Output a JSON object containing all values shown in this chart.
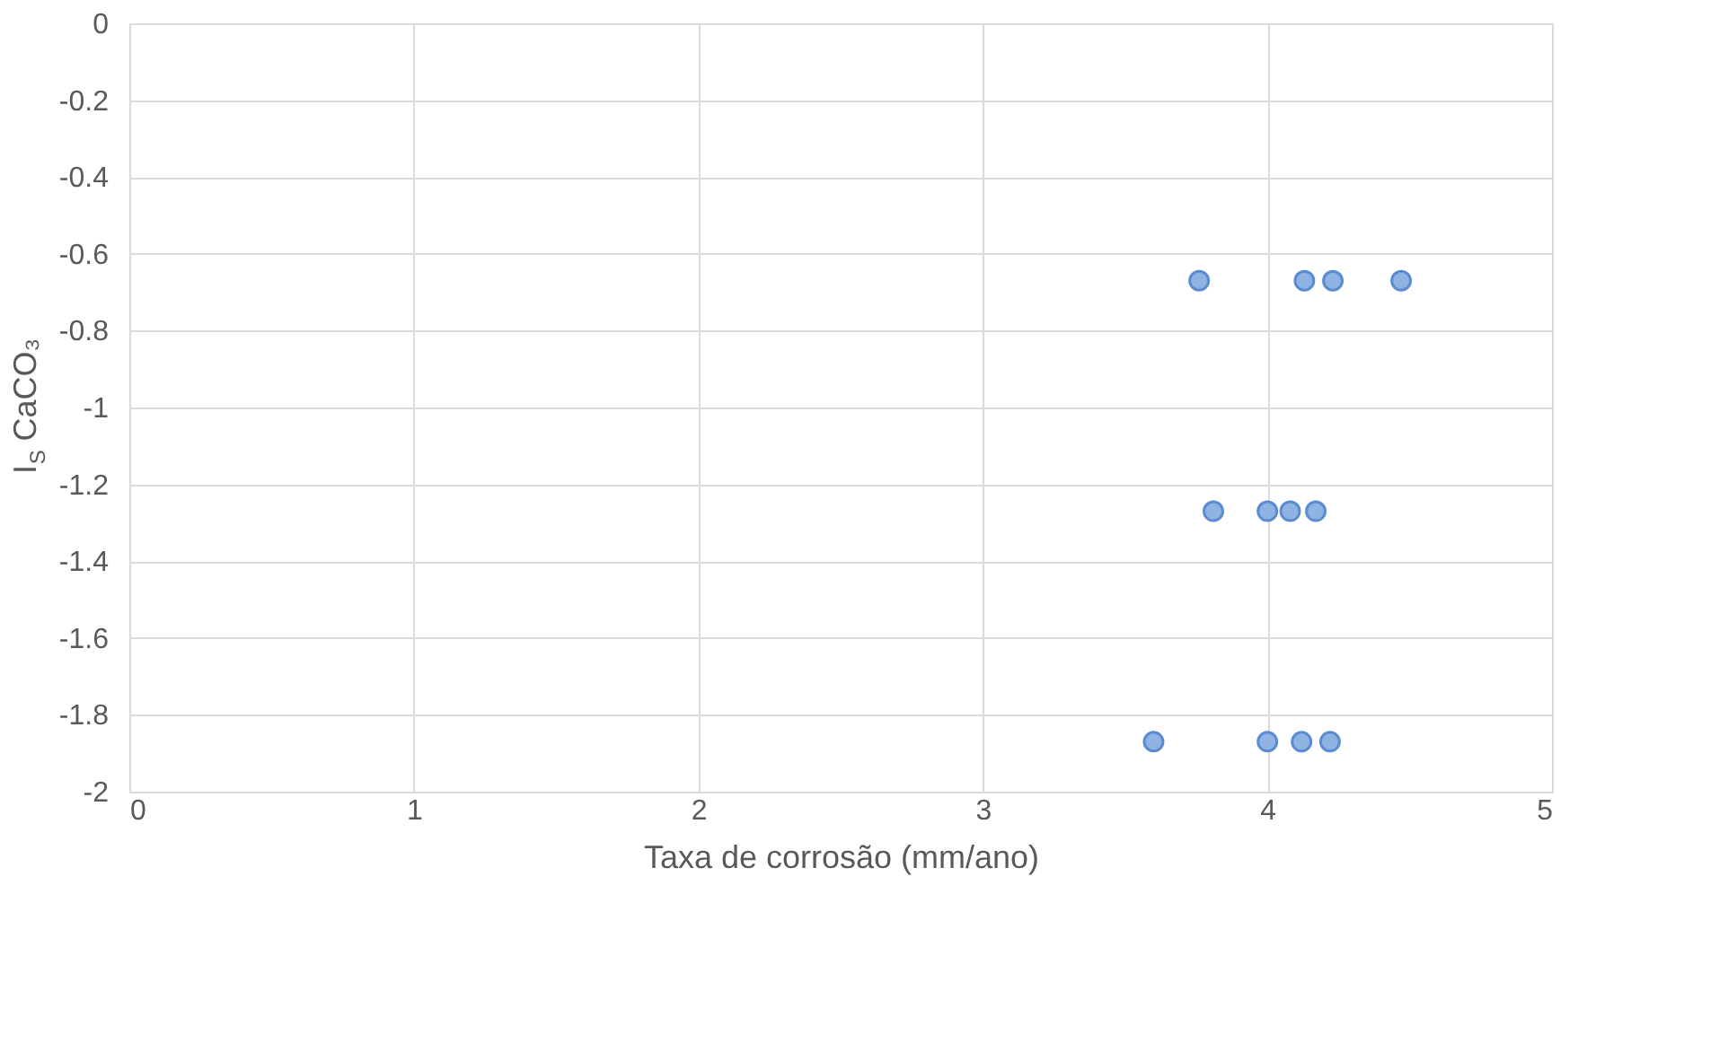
{
  "chart_data": {
    "type": "scatter",
    "xlabel": "Taxa de corrosão (mm/ano)",
    "ylabel": "I$_{S}$ CaCO₃",
    "series": [
      {
        "color": "#8fb4e3",
        "x": [
          3.76,
          4.13,
          4.23,
          4.47,
          3.81,
          4.0,
          4.08,
          4.17,
          3.6,
          4.0,
          4.12,
          4.22
        ],
        "values": [
          -0.67,
          -0.67,
          -0.67,
          -0.67,
          -1.27,
          -1.27,
          -1.27,
          -1.27,
          -1.87,
          -1.87,
          -1.87,
          -1.87
        ]
      }
    ],
    "xlim": [
      0,
      5
    ],
    "xticks": [
      0,
      1,
      2,
      3,
      4,
      5
    ],
    "ylim": [
      -2,
      0
    ],
    "yticks": [
      -2,
      -1.8,
      -1.6,
      -1.4,
      -1.2,
      -1,
      -0.8,
      -0.6,
      -0.4,
      -0.2,
      0
    ],
    "grid": true,
    "marker": "circle"
  }
}
